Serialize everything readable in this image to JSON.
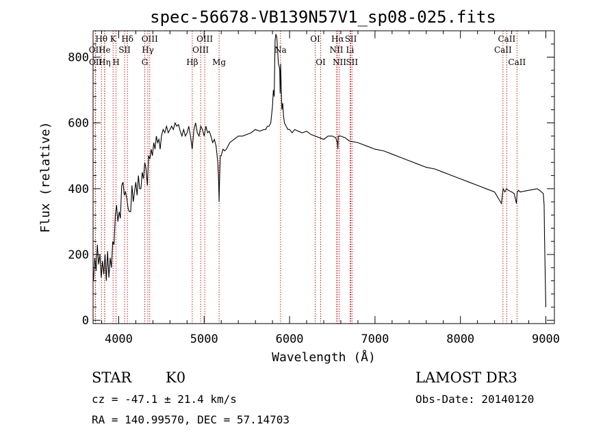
{
  "chart_data": {
    "type": "line",
    "title": "spec-56678-VB139N57V1_sp08-025.fits",
    "xlabel": "Wavelength (Å)",
    "ylabel": "Flux (relative)",
    "xlim": [
      3700,
      9100
    ],
    "ylim": [
      -10,
      880
    ],
    "xticks": [
      {
        "value": 4000,
        "label": "4000"
      },
      {
        "value": 5000,
        "label": "5000"
      },
      {
        "value": 6000,
        "label": "6000"
      },
      {
        "value": 7000,
        "label": "7000"
      },
      {
        "value": 8000,
        "label": "8000"
      },
      {
        "value": 9000,
        "label": "9000"
      }
    ],
    "yticks": [
      {
        "value": 0,
        "label": "0"
      },
      {
        "value": 200,
        "label": "200"
      },
      {
        "value": 400,
        "label": "400"
      },
      {
        "value": 600,
        "label": "600"
      },
      {
        "value": 800,
        "label": "800"
      }
    ],
    "grid": false,
    "series": [
      {
        "color": "#000000",
        "x": [
          3705,
          3720,
          3735,
          3750,
          3765,
          3780,
          3795,
          3810,
          3825,
          3840,
          3855,
          3870,
          3885,
          3900,
          3915,
          3930,
          3945,
          3960,
          3975,
          3990,
          4005,
          4020,
          4035,
          4050,
          4065,
          4080,
          4095,
          4110,
          4125,
          4140,
          4155,
          4170,
          4185,
          4200,
          4215,
          4230,
          4245,
          4260,
          4275,
          4290,
          4305,
          4320,
          4335,
          4350,
          4365,
          4380,
          4395,
          4410,
          4425,
          4440,
          4455,
          4470,
          4485,
          4500,
          4520,
          4540,
          4560,
          4580,
          4600,
          4620,
          4640,
          4660,
          4680,
          4700,
          4720,
          4740,
          4760,
          4780,
          4800,
          4820,
          4840,
          4860,
          4880,
          4900,
          4920,
          4940,
          4960,
          4980,
          5000,
          5020,
          5040,
          5060,
          5080,
          5100,
          5120,
          5140,
          5160,
          5170,
          5175,
          5180,
          5185,
          5190,
          5200,
          5220,
          5240,
          5260,
          5280,
          5300,
          5350,
          5400,
          5450,
          5500,
          5550,
          5600,
          5650,
          5700,
          5720,
          5740,
          5760,
          5780,
          5800,
          5810,
          5820,
          5830,
          5840,
          5850,
          5860,
          5870,
          5880,
          5885,
          5890,
          5895,
          5900,
          5910,
          5920,
          5930,
          5940,
          5960,
          5980,
          6000,
          6030,
          6060,
          6100,
          6150,
          6200,
          6250,
          6300,
          6350,
          6400,
          6450,
          6500,
          6540,
          6560,
          6565,
          6570,
          6580,
          6600,
          6650,
          6700,
          6800,
          6900,
          7000,
          7100,
          7200,
          7300,
          7400,
          7500,
          7600,
          7700,
          7800,
          7900,
          8000,
          8100,
          8200,
          8300,
          8400,
          8480,
          8500,
          8520,
          8530,
          8540,
          8560,
          8600,
          8630,
          8655,
          8665,
          8680,
          8700,
          8800,
          8900,
          8950,
          8970,
          8980,
          8985,
          8990,
          8995,
          9000
        ],
        "y": [
          120,
          190,
          150,
          230,
          170,
          200,
          130,
          180,
          140,
          200,
          120,
          210,
          130,
          190,
          160,
          240,
          230,
          320,
          350,
          300,
          330,
          310,
          410,
          420,
          380,
          390,
          370,
          340,
          330,
          330,
          410,
          360,
          390,
          420,
          380,
          440,
          400,
          400,
          450,
          430,
          480,
          460,
          410,
          500,
          490,
          520,
          500,
          540,
          520,
          560,
          540,
          550,
          520,
          560,
          580,
          570,
          590,
          570,
          580,
          590,
          580,
          600,
          590,
          595,
          575,
          560,
          580,
          560,
          570,
          590,
          560,
          520,
          580,
          600,
          570,
          560,
          590,
          580,
          560,
          590,
          570,
          575,
          560,
          540,
          550,
          530,
          480,
          420,
          360,
          420,
          470,
          500,
          500,
          520,
          515,
          520,
          530,
          540,
          550,
          560,
          560,
          565,
          570,
          580,
          575,
          580,
          580,
          590,
          590,
          600,
          650,
          700,
          680,
          850,
          870,
          860,
          820,
          780,
          770,
          760,
          690,
          780,
          730,
          640,
          660,
          620,
          600,
          590,
          580,
          580,
          570,
          580,
          575,
          570,
          575,
          565,
          560,
          555,
          550,
          560,
          560,
          555,
          540,
          520,
          560,
          560,
          560,
          555,
          545,
          540,
          530,
          520,
          515,
          505,
          495,
          485,
          475,
          465,
          460,
          450,
          440,
          430,
          420,
          410,
          400,
          390,
          355,
          400,
          390,
          395,
          400,
          395,
          390,
          385,
          355,
          390,
          395,
          390,
          395,
          400,
          390,
          385,
          350,
          250,
          170,
          100,
          40
        ]
      }
    ],
    "annotations": [
      {
        "label": "Hθ",
        "x": 3798,
        "row": 1
      },
      {
        "label": "OII",
        "x": 3727,
        "row": 2
      },
      {
        "label": "OII",
        "x": 3729,
        "row": 3
      },
      {
        "label": "He",
        "x": 3835,
        "row": 2
      },
      {
        "label": "Hη",
        "x": 3835,
        "row": 3
      },
      {
        "label": "K",
        "x": 3934,
        "row": 1
      },
      {
        "label": "H",
        "x": 3969,
        "row": 3
      },
      {
        "label": "SII",
        "x": 4069,
        "row": 2
      },
      {
        "label": "Hδ",
        "x": 4102,
        "row": 1
      },
      {
        "label": "OIII",
        "x": 4363,
        "row": 1
      },
      {
        "label": "Hγ",
        "x": 4341,
        "row": 2
      },
      {
        "label": "G",
        "x": 4305,
        "row": 3
      },
      {
        "label": "Hβ",
        "x": 4861,
        "row": 3
      },
      {
        "label": "OIII",
        "x": 5007,
        "row": 1
      },
      {
        "label": "OIII",
        "x": 4959,
        "row": 2
      },
      {
        "label": "Mg",
        "x": 5175,
        "row": 3
      },
      {
        "label": "Na",
        "x": 5894,
        "row": 2
      },
      {
        "label": "OI",
        "x": 6300,
        "row": 1
      },
      {
        "label": "OI",
        "x": 6364,
        "row": 3
      },
      {
        "label": "Hα",
        "x": 6563,
        "row": 1
      },
      {
        "label": "NII",
        "x": 6548,
        "row": 2
      },
      {
        "label": "NII",
        "x": 6584,
        "row": 3
      },
      {
        "label": "SII",
        "x": 6717,
        "row": 1
      },
      {
        "label": "Li",
        "x": 6708,
        "row": 2
      },
      {
        "label": "SII",
        "x": 6731,
        "row": 3
      },
      {
        "label": "CaII",
        "x": 8542,
        "row": 1
      },
      {
        "label": "CaII",
        "x": 8498,
        "row": 2
      },
      {
        "label": "CaII",
        "x": 8662,
        "row": 3
      }
    ]
  },
  "info": {
    "object_type": "STAR",
    "subclass": "K0",
    "survey": "LAMOST DR3",
    "redshift_line": "cz = -47.1 ± 21.4 km/s",
    "obs_date_line": "Obs-Date: 20140120",
    "coords_line": "RA = 140.99570, DEC =  57.14703"
  }
}
